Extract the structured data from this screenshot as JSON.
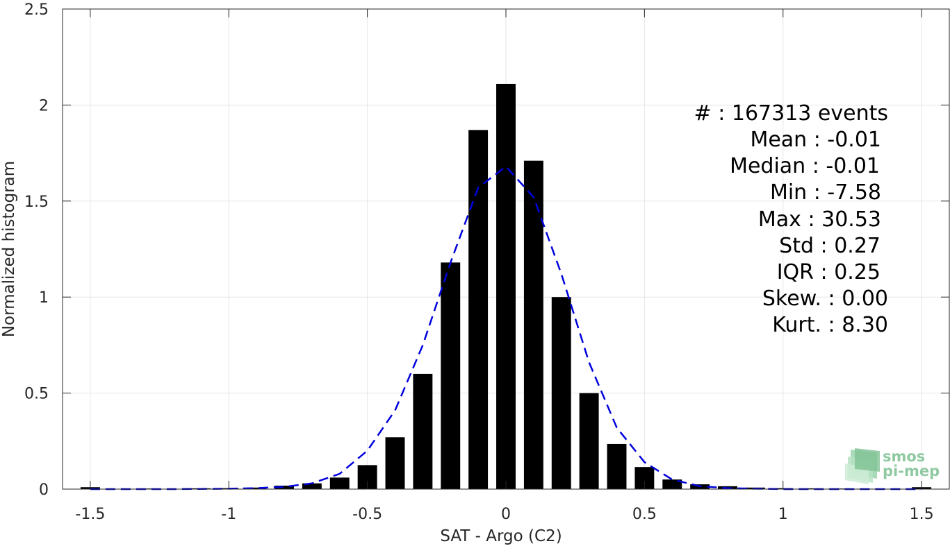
{
  "chart_data": {
    "type": "bar",
    "xlabel": "SAT - Argo (C2)",
    "ylabel": "Normalized histogram",
    "xlim": [
      -1.6,
      1.6
    ],
    "ylim": [
      0,
      2.5
    ],
    "xticks": [
      -1.5,
      -1,
      -0.5,
      0,
      0.5,
      1,
      1.5
    ],
    "xtick_labels": [
      "-1.5",
      "-1",
      "-0.5",
      "0",
      "0.5",
      "1",
      "1.5"
    ],
    "yticks": [
      0,
      0.5,
      1,
      1.5,
      2,
      2.5
    ],
    "ytick_labels": [
      "0",
      "0.5",
      "1",
      "1.5",
      "2",
      "2.5"
    ],
    "grid": true,
    "bar_width": 0.07,
    "bar_color": "#000000",
    "bins": {
      "x": [
        -1.5,
        -1.3,
        -1.1,
        -1.0,
        -0.9,
        -0.8,
        -0.7,
        -0.6,
        -0.5,
        -0.4,
        -0.3,
        -0.2,
        -0.1,
        0.0,
        0.1,
        0.2,
        0.3,
        0.4,
        0.5,
        0.6,
        0.7,
        0.8,
        0.9,
        1.0,
        1.1,
        1.2,
        1.3,
        1.5
      ],
      "values": [
        0.01,
        0.003,
        0.004,
        0.005,
        0.008,
        0.018,
        0.03,
        0.06,
        0.125,
        0.27,
        0.6,
        1.18,
        1.87,
        2.11,
        1.71,
        1.0,
        0.5,
        0.235,
        0.115,
        0.05,
        0.025,
        0.015,
        0.008,
        0.005,
        0.004,
        0.003,
        0.002,
        0.01
      ]
    },
    "fit_curve": {
      "style": "dashed",
      "color": "#0000dd",
      "x": [
        -1.5,
        -1.4,
        -1.3,
        -1.2,
        -1.1,
        -1.0,
        -0.9,
        -0.8,
        -0.7,
        -0.6,
        -0.5,
        -0.4,
        -0.3,
        -0.2,
        -0.1,
        0.0,
        0.1,
        0.2,
        0.3,
        0.4,
        0.5,
        0.6,
        0.7,
        0.8,
        0.9,
        1.0,
        1.1,
        1.2,
        1.3,
        1.4,
        1.5
      ],
      "values": [
        0.0,
        0.0,
        0.0,
        0.0,
        0.001,
        0.002,
        0.005,
        0.012,
        0.03,
        0.08,
        0.2,
        0.41,
        0.75,
        1.18,
        1.57,
        1.68,
        1.52,
        1.12,
        0.66,
        0.32,
        0.14,
        0.05,
        0.015,
        0.005,
        0.002,
        0.0,
        0.0,
        0.0,
        0.0,
        0.0,
        0.0
      ]
    },
    "stats": [
      "#  : 167313 events",
      "Mean : -0.01",
      "Median : -0.01",
      "Min : -7.58",
      "Max : 30.53",
      "Std : 0.27",
      "IQR : 0.25",
      "Skew. : 0.00",
      "Kurt. : 8.30"
    ]
  },
  "logo": {
    "line1": "smos",
    "line2": "pi-mep",
    "color": "#8fc9a2"
  }
}
